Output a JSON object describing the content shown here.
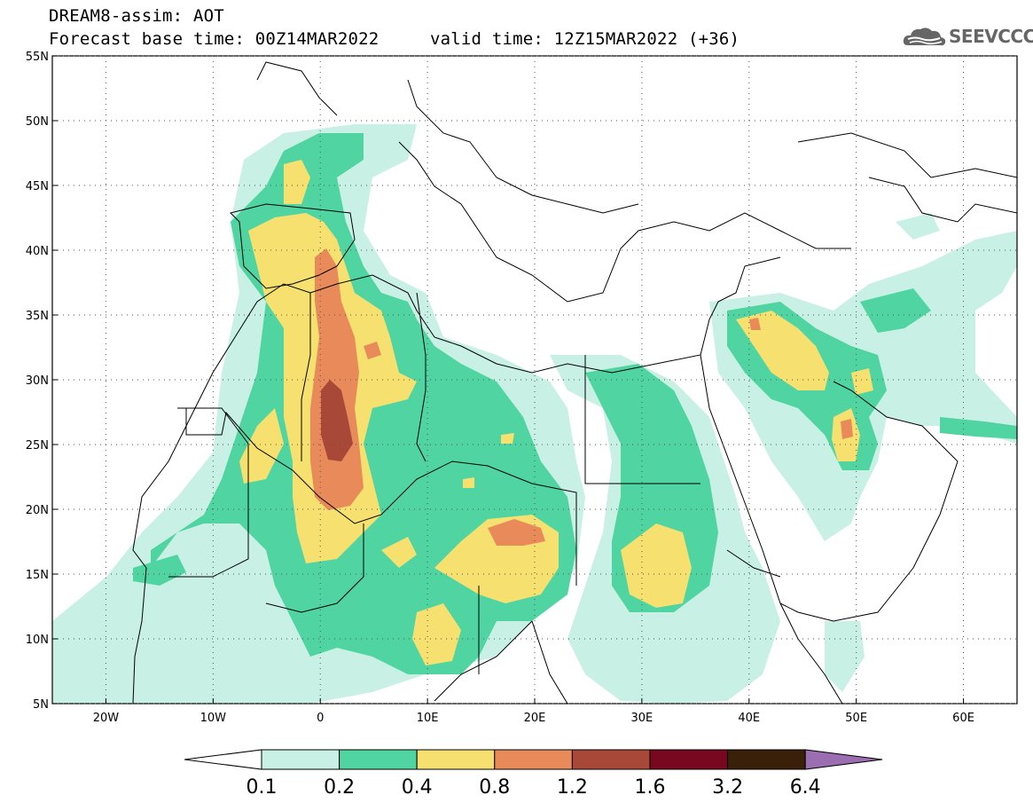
{
  "header": {
    "line1": "DREAM8-assim: AOT",
    "line2": "Forecast base time: 00Z14MAR2022",
    "line3": "valid time: 12Z15MAR2022 (+36)"
  },
  "logo": {
    "text": "SEEVCCC",
    "icon": "cloud-icon"
  },
  "map": {
    "lon_range": [
      -25,
      65
    ],
    "lat_range": [
      5,
      55
    ],
    "lon_ticks": [
      {
        "value": -20,
        "label": "20W"
      },
      {
        "value": -10,
        "label": "10W"
      },
      {
        "value": 0,
        "label": "0"
      },
      {
        "value": 10,
        "label": "10E"
      },
      {
        "value": 20,
        "label": "20E"
      },
      {
        "value": 30,
        "label": "30E"
      },
      {
        "value": 40,
        "label": "40E"
      },
      {
        "value": 50,
        "label": "50E"
      },
      {
        "value": 60,
        "label": "60E"
      }
    ],
    "lat_ticks": [
      {
        "value": 55,
        "label": "55N"
      },
      {
        "value": 50,
        "label": "50N"
      },
      {
        "value": 45,
        "label": "45N"
      },
      {
        "value": 40,
        "label": "40N"
      },
      {
        "value": 35,
        "label": "35N"
      },
      {
        "value": 30,
        "label": "30N"
      },
      {
        "value": 25,
        "label": "25N"
      },
      {
        "value": 20,
        "label": "20N"
      },
      {
        "value": 15,
        "label": "15N"
      },
      {
        "value": 10,
        "label": "10N"
      },
      {
        "value": 5,
        "label": "5N"
      }
    ],
    "grid": "dotted"
  },
  "colorbar": {
    "levels": [
      "0.1",
      "0.2",
      "0.4",
      "0.8",
      "1.2",
      "1.6",
      "3.2",
      "6.4"
    ],
    "colors": [
      "#ffffff",
      "#c8f0e4",
      "#4fd4a2",
      "#f5e070",
      "#e88a5a",
      "#a84838",
      "#780820",
      "#3a2008",
      "#9a6eb0"
    ]
  }
}
